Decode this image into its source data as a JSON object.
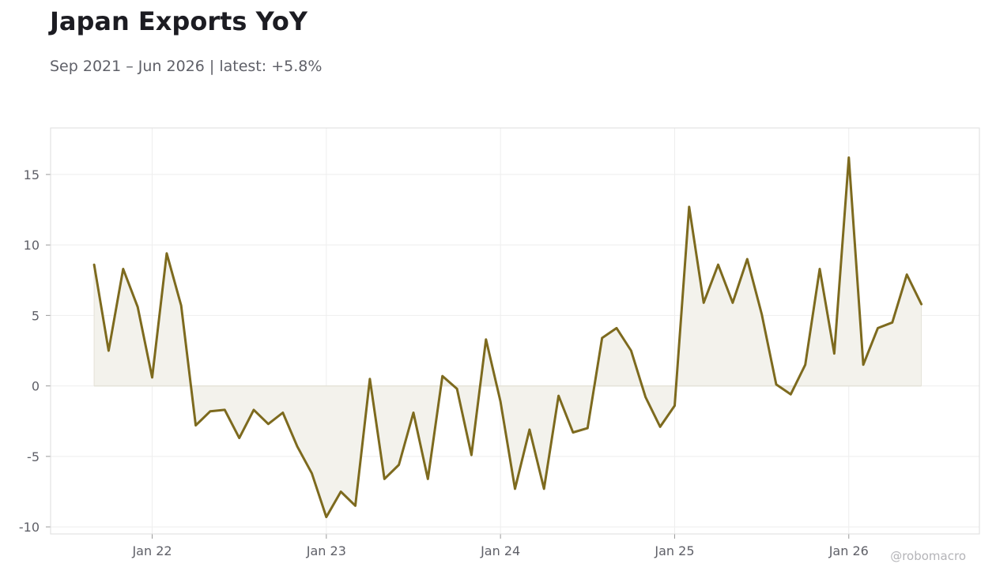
{
  "header": {
    "title": "Japan Exports YoY",
    "subtitle": "Sep 2021 – Jun 2026 | latest: +5.8%"
  },
  "watermark": "@robomacro",
  "colors": {
    "line": "#7d6a1e",
    "fill": "#f3f2ec",
    "grid": "#eeeeee",
    "frame": "#dddddd",
    "zero_line": "#e4e2d8"
  },
  "chart_data": {
    "type": "area",
    "title": "Japan Exports YoY",
    "subtitle": "Sep 2021 – Jun 2026 | latest: +5.8%",
    "xlabel": "",
    "ylabel": "",
    "x_start": "2021-09",
    "x_end": "2026-06",
    "xlim": [
      "2021-06",
      "2026-10"
    ],
    "ylim": [
      -10.5,
      18.3
    ],
    "y_ticks": [
      15,
      10,
      5,
      0,
      -5,
      -10
    ],
    "y_tick_labels": [
      "15",
      "10",
      "5",
      "0",
      "-5",
      "-10"
    ],
    "x_ticks": [
      "2022-01",
      "2023-01",
      "2024-01",
      "2025-01",
      "2026-01"
    ],
    "x_tick_labels": [
      "Jan 22",
      "Jan 23",
      "Jan 24",
      "Jan 25",
      "Jan 26"
    ],
    "grid": true,
    "legend": "none",
    "baseline": 0,
    "series": [
      {
        "values": [
          8.6,
          2.5,
          8.3,
          5.6,
          0.6,
          9.4,
          5.7,
          -2.8,
          -1.8,
          -1.7,
          -3.7,
          -1.7,
          -2.7,
          -1.9,
          -4.3,
          -6.2,
          -9.3,
          -7.5,
          -8.5,
          0.5,
          -6.6,
          -5.6,
          -1.9,
          -6.6,
          0.7,
          -0.2,
          -4.9,
          3.3,
          -1.1,
          -7.3,
          -3.1,
          -7.3,
          -0.7,
          -3.3,
          -3.0,
          3.4,
          4.1,
          2.5,
          -0.8,
          -2.9,
          -1.4,
          12.7,
          5.9,
          8.6,
          5.9,
          9.0,
          5.1,
          0.1,
          -0.6,
          1.5,
          8.3,
          2.3,
          16.2,
          1.5,
          4.1,
          4.5,
          7.9,
          5.8
        ]
      }
    ]
  }
}
